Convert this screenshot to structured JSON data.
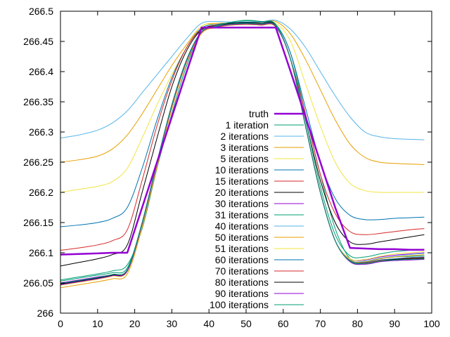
{
  "chart_data": {
    "type": "line",
    "title": "",
    "xlabel": "",
    "ylabel": "",
    "xlim": [
      0,
      100
    ],
    "ylim": [
      266,
      266.5
    ],
    "xticks": [
      "0",
      "10",
      "20",
      "30",
      "40",
      "50",
      "60",
      "70",
      "80",
      "90",
      "100"
    ],
    "xtick_values": [
      0,
      10,
      20,
      30,
      40,
      50,
      60,
      70,
      80,
      90,
      100
    ],
    "yticks": [
      "266",
      "266.05",
      "266.1",
      "266.15",
      "266.2",
      "266.25",
      "266.3",
      "266.35",
      "266.4",
      "266.45",
      "266.5"
    ],
    "ytick_values": [
      266,
      266.05,
      266.1,
      266.15,
      266.2,
      266.25,
      266.3,
      266.35,
      266.4,
      266.45,
      266.5
    ],
    "grid": false,
    "legend_position": "center",
    "x": [
      0,
      5,
      10,
      14,
      18,
      22,
      26,
      30,
      34,
      38,
      42,
      46,
      50,
      54,
      58,
      62,
      66,
      70,
      74,
      78,
      82,
      86,
      90,
      94,
      98
    ],
    "series": [
      {
        "name": "truth",
        "color": "#9400d3",
        "width": 2.5,
        "values": [
          266.097,
          266.098,
          266.099,
          266.1,
          266.1,
          266.175,
          266.25,
          266.325,
          266.4,
          266.473,
          266.473,
          266.473,
          266.473,
          266.473,
          266.473,
          266.4,
          266.325,
          266.25,
          266.175,
          266.108,
          266.107,
          266.106,
          266.106,
          266.105,
          266.105
        ]
      },
      {
        "name": "1 iteration",
        "color": "#009e73",
        "width": 1,
        "values": [
          266.055,
          266.06,
          266.065,
          266.07,
          266.08,
          266.14,
          266.24,
          266.33,
          266.41,
          266.465,
          266.476,
          266.482,
          266.485,
          266.483,
          266.478,
          266.43,
          266.33,
          266.23,
          266.14,
          266.09,
          266.085,
          266.09,
          266.093,
          266.094,
          266.095
        ]
      },
      {
        "name": "2 iterations",
        "color": "#56b4e9",
        "width": 1,
        "values": [
          266.29,
          266.295,
          266.303,
          266.315,
          266.335,
          266.365,
          266.395,
          266.425,
          266.455,
          266.48,
          266.483,
          266.482,
          266.48,
          266.482,
          266.485,
          266.47,
          266.44,
          266.4,
          266.36,
          266.325,
          266.3,
          266.292,
          266.289,
          266.288,
          266.287
        ]
      },
      {
        "name": "3 iterations",
        "color": "#e69f00",
        "width": 1,
        "values": [
          266.25,
          266.254,
          266.26,
          266.272,
          266.295,
          266.33,
          266.37,
          266.41,
          266.445,
          266.475,
          266.48,
          266.48,
          266.48,
          266.482,
          266.483,
          266.462,
          266.42,
          266.37,
          266.32,
          266.28,
          266.258,
          266.25,
          266.248,
          266.247,
          266.246
        ]
      },
      {
        "name": "5 iterations",
        "color": "#f0e442",
        "width": 1,
        "values": [
          266.2,
          266.205,
          266.21,
          266.218,
          266.24,
          266.29,
          266.345,
          266.395,
          266.44,
          266.475,
          266.478,
          266.479,
          266.48,
          266.48,
          266.48,
          266.45,
          266.38,
          266.31,
          266.25,
          266.215,
          266.203,
          266.2,
          266.2,
          266.2,
          266.2
        ]
      },
      {
        "name": "10 iterations",
        "color": "#0072b2",
        "width": 1,
        "values": [
          266.143,
          266.146,
          266.15,
          266.157,
          266.175,
          266.24,
          266.32,
          266.39,
          266.44,
          266.472,
          266.478,
          266.481,
          266.482,
          266.482,
          266.478,
          266.43,
          266.34,
          266.25,
          266.19,
          266.162,
          266.155,
          266.155,
          266.157,
          266.158,
          266.159
        ]
      },
      {
        "name": "15 iterations",
        "color": "#d62728",
        "width": 1,
        "values": [
          266.104,
          266.108,
          266.113,
          266.12,
          266.138,
          266.22,
          266.31,
          266.385,
          266.44,
          266.47,
          266.477,
          266.48,
          266.481,
          266.48,
          266.477,
          266.42,
          266.33,
          266.23,
          266.165,
          266.135,
          266.13,
          266.132,
          266.135,
          266.138,
          266.14
        ]
      },
      {
        "name": "20 iterations",
        "color": "#000000",
        "width": 1,
        "values": [
          266.078,
          266.084,
          266.09,
          266.097,
          266.113,
          266.2,
          266.29,
          266.375,
          266.435,
          266.469,
          266.476,
          266.48,
          266.481,
          266.48,
          266.477,
          266.42,
          266.32,
          266.22,
          266.15,
          266.118,
          266.114,
          266.118,
          266.122,
          266.126,
          266.13
        ]
      },
      {
        "name": "30 iterations",
        "color": "#9400d3",
        "width": 1,
        "values": [
          266.05,
          266.055,
          266.06,
          266.064,
          266.072,
          266.15,
          266.25,
          266.345,
          266.42,
          266.466,
          266.474,
          266.477,
          266.478,
          266.477,
          266.474,
          266.42,
          266.31,
          266.2,
          266.12,
          266.09,
          266.088,
          266.093,
          266.096,
          266.098,
          266.1
        ]
      },
      {
        "name": "31 iterations",
        "color": "#009e73",
        "width": 1,
        "values": [
          266.053,
          266.058,
          266.063,
          266.067,
          266.075,
          266.15,
          266.25,
          266.345,
          266.42,
          266.466,
          266.476,
          266.482,
          266.484,
          266.483,
          266.478,
          266.42,
          266.32,
          266.21,
          266.13,
          266.095,
          266.093,
          266.098,
          266.102,
          266.104,
          266.106
        ]
      },
      {
        "name": "40 iterations",
        "color": "#56b4e9",
        "width": 1,
        "values": [
          266.047,
          266.052,
          266.057,
          266.062,
          266.07,
          266.148,
          266.248,
          266.343,
          266.418,
          266.465,
          266.474,
          266.478,
          266.479,
          266.478,
          266.475,
          266.42,
          266.31,
          266.2,
          266.12,
          266.088,
          266.086,
          266.091,
          266.094,
          266.097,
          266.099
        ]
      },
      {
        "name": "50 iterations",
        "color": "#e69f00",
        "width": 1,
        "values": [
          266.042,
          266.047,
          266.052,
          266.057,
          266.065,
          266.142,
          266.242,
          266.338,
          266.415,
          266.463,
          266.473,
          266.477,
          266.478,
          266.477,
          266.474,
          266.42,
          266.31,
          266.2,
          266.12,
          266.088,
          266.085,
          266.09,
          266.093,
          266.095,
          266.097
        ]
      },
      {
        "name": "51 iterations",
        "color": "#f0e442",
        "width": 1,
        "values": [
          266.046,
          266.051,
          266.056,
          266.061,
          266.069,
          266.146,
          266.246,
          266.342,
          266.417,
          266.464,
          266.474,
          266.478,
          266.479,
          266.478,
          266.475,
          266.42,
          266.31,
          266.2,
          266.12,
          266.09,
          266.089,
          266.094,
          266.098,
          266.1,
          266.102
        ]
      },
      {
        "name": "60 iterations",
        "color": "#0072b2",
        "width": 1,
        "values": [
          266.049,
          266.054,
          266.059,
          266.064,
          266.072,
          266.15,
          266.25,
          266.345,
          266.42,
          266.466,
          266.475,
          266.478,
          266.479,
          266.478,
          266.475,
          266.42,
          266.31,
          266.2,
          266.12,
          266.087,
          266.084,
          266.088,
          266.09,
          266.092,
          266.093
        ]
      },
      {
        "name": "70 iterations",
        "color": "#d62728",
        "width": 1,
        "values": [
          266.048,
          266.053,
          266.058,
          266.063,
          266.071,
          266.149,
          266.249,
          266.344,
          266.419,
          266.466,
          266.475,
          266.478,
          266.479,
          266.478,
          266.475,
          266.42,
          266.31,
          266.2,
          266.12,
          266.086,
          266.083,
          266.087,
          266.089,
          266.091,
          266.092
        ]
      },
      {
        "name": "80 iterations",
        "color": "#000000",
        "width": 1,
        "values": [
          266.048,
          266.053,
          266.058,
          266.063,
          266.07,
          266.148,
          266.248,
          266.344,
          266.419,
          266.465,
          266.474,
          266.478,
          266.479,
          266.478,
          266.475,
          266.42,
          266.31,
          266.2,
          266.12,
          266.086,
          266.082,
          266.086,
          266.089,
          266.09,
          266.091
        ]
      },
      {
        "name": "90 iterations",
        "color": "#9400d3",
        "width": 1,
        "values": [
          266.047,
          266.052,
          266.057,
          266.062,
          266.07,
          266.148,
          266.248,
          266.343,
          266.418,
          266.465,
          266.474,
          266.478,
          266.479,
          266.478,
          266.475,
          266.42,
          266.31,
          266.2,
          266.12,
          266.085,
          266.081,
          266.085,
          266.087,
          266.088,
          266.089
        ]
      },
      {
        "name": "100 iterations",
        "color": "#009e73",
        "width": 1,
        "values": [
          266.049,
          266.054,
          266.059,
          266.064,
          266.072,
          266.15,
          266.25,
          266.345,
          266.42,
          266.466,
          266.475,
          266.479,
          266.48,
          266.479,
          266.476,
          266.42,
          266.31,
          266.2,
          266.12,
          266.086,
          266.082,
          266.086,
          266.088,
          266.089,
          266.09
        ]
      }
    ]
  }
}
